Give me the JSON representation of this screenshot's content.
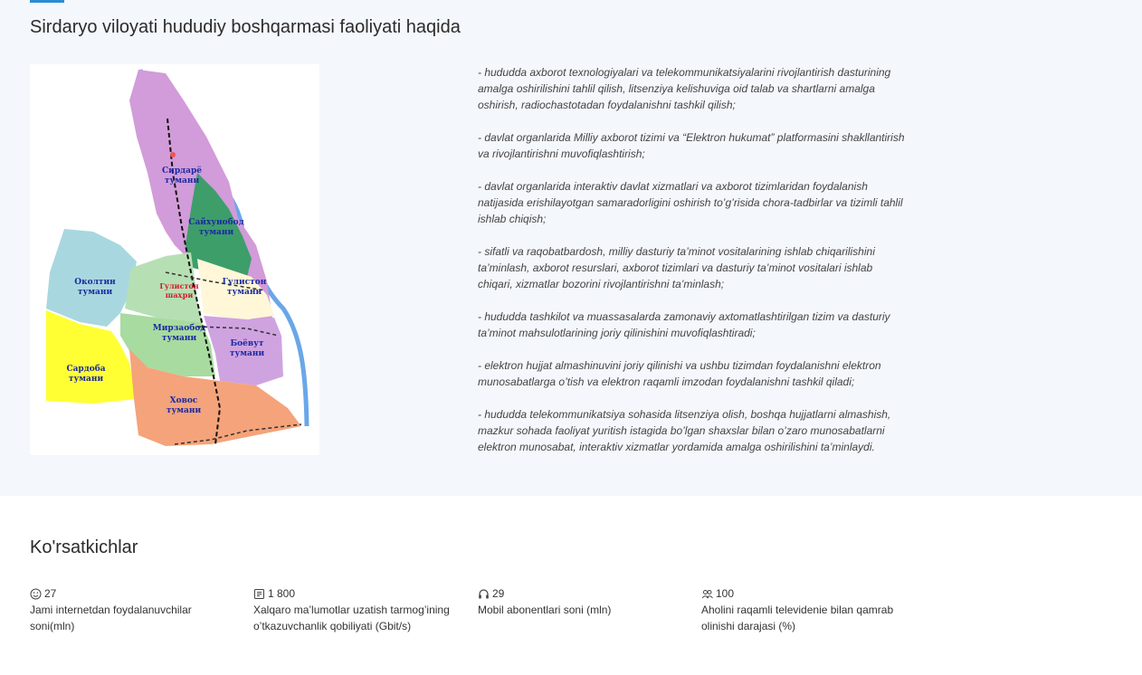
{
  "about": {
    "title": "Sirdaryo viloyati hududiy boshqarmasi faoliyati haqida",
    "map_labels": {
      "sirdaryo": [
        "Сирдарё",
        "тумани"
      ],
      "sayxunobod": [
        "Сайхунобод",
        "тумани"
      ],
      "oqoltin": [
        "Околтин",
        "тумани"
      ],
      "guliston_city": [
        "Гулистон",
        "шаҳри"
      ],
      "guliston": [
        "Гулистон",
        "тумани"
      ],
      "mirzaobod": [
        "Мирзаобод",
        "тумани"
      ],
      "boyovut": [
        "Боёвут",
        "тумани"
      ],
      "sardoba": [
        "Сардоба",
        "тумани"
      ],
      "xovos": [
        "Ховос",
        "тумани"
      ]
    },
    "duties": [
      "- hududda axborot texnologiyalari va telekommunikatsiyalarini rivojlantirish dasturining amalga oshirilishini tahlil qilish, litsenziya kelishuviga oid talab va shartlarni amalga oshirish, radiochastotadan foydalanishni tashkil qilish;",
      "- davlat organlarida Milliy axborot tizimi va “Elektron hukumat” platformasini shakllantirish va rivojlantirishni muvofiqlashtirish;",
      "- davlat organlarida interaktiv davlat xizmatlari va axborot tizimlaridan foydalanish natijasida erishilayotgan samaradorligini oshirish to’g’risida chora-tadbirlar va tizimli tahlil ishlab chiqish;",
      "- sifatli va raqobatbardosh, milliy dasturiy ta’minot vositalarining ishlab chiqarilishini ta’minlash, axborot resurslari, axborot tizimlari va dasturiy ta’minot vositalari ishlab chiqari, xizmatlar bozorini rivojlantirishni ta’minlash;",
      "- hududda tashkilot va muassasalarda zamonaviy axtomatlashtirilgan tizim va dasturiy ta’minot mahsulotlarining joriy qilinishini muvofiqlashtiradi;",
      "- elektron hujjat almashinuvini joriy qilinishi va ushbu tizimdan foydalanishni elektron munosabatlarga o’tish va elektron raqamli imzodan foydalanishni tashkil qiladi;",
      "- hududda telekommunikatsiya sohasida litsenziya olish, boshqa hujjatlarni almashish, mazkur sohada faoliyat yuritish istagida bo’lgan shaxslar bilan o’zaro munosabatlarni elektron munosabat, interaktiv xizmatlar yordamida amalga oshirilishini ta’minlaydi."
    ]
  },
  "stats": {
    "title": "Ko'rsatkichlar",
    "items": [
      {
        "icon": "smiley-icon",
        "value": "27",
        "label": "Jami internetdan foydalanuvchilar soni(mln)"
      },
      {
        "icon": "document-icon",
        "value": "1 800",
        "label": "Xalqaro ma’lumotlar uzatish tarmog’ining o’tkazuvchanlik qobiliyati (Gbit/s)"
      },
      {
        "icon": "headphones-icon",
        "value": "29",
        "label": "Mobil abonentlari soni (mln)"
      },
      {
        "icon": "users-icon",
        "value": "100",
        "label": "Aholini raqamli televidenie bilan qamrab olinishi darajasi (%)"
      }
    ]
  }
}
